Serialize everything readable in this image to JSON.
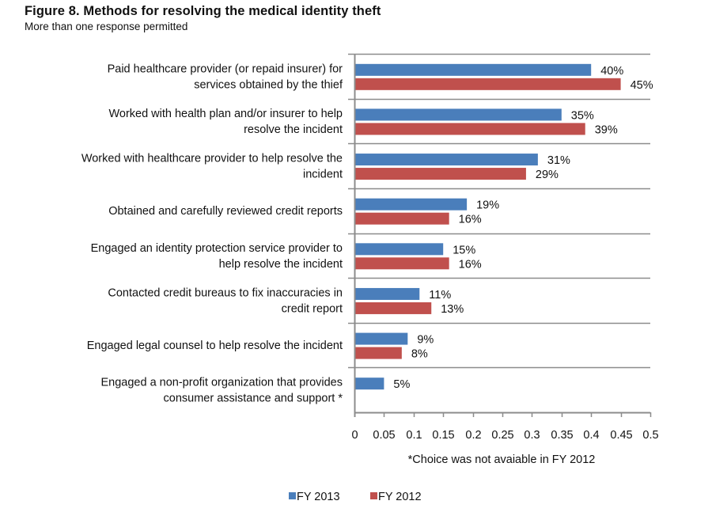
{
  "chart_data": {
    "type": "bar",
    "orientation": "horizontal",
    "title": "Figure 8. Methods for resolving the medical identity theft",
    "subtitle": "More than one response permitted",
    "xlabel": "",
    "ylabel": "",
    "xlim": [
      0,
      0.5
    ],
    "xticks": [
      "0",
      "0.05",
      "0.1",
      "0.15",
      "0.2",
      "0.25",
      "0.3",
      "0.35",
      "0.4",
      "0.45",
      "0.5"
    ],
    "xtick_values": [
      0,
      0.05,
      0.1,
      0.15,
      0.2,
      0.25,
      0.3,
      0.35,
      0.4,
      0.45,
      0.5
    ],
    "grid": false,
    "category_separators": true,
    "legend_position": "bottom",
    "footnote": "*Choice was not avaiable in FY 2012",
    "categories": [
      [
        "Paid healthcare provider (or repaid insurer) for",
        "services obtained by the thief"
      ],
      [
        "Worked with health plan and/or insurer to help",
        "resolve the incident"
      ],
      [
        "Worked with healthcare provider to help resolve the",
        "incident"
      ],
      [
        "Obtained and carefully reviewed credit reports"
      ],
      [
        "Engaged an identity protection service provider to",
        "help resolve the incident"
      ],
      [
        "Contacted credit bureaus to fix inaccuracies in",
        "credit report"
      ],
      [
        "Engaged legal counsel to help resolve the incident"
      ],
      [
        "Engaged a non-profit organization that provides",
        "consumer assistance and support *"
      ]
    ],
    "series": [
      {
        "name": "FY 2013",
        "color": "#4A7EBB",
        "values": [
          0.4,
          0.35,
          0.31,
          0.19,
          0.15,
          0.11,
          0.09,
          0.05
        ],
        "labels": [
          "40%",
          "35%",
          "31%",
          "19%",
          "15%",
          "11%",
          "9%",
          "5%"
        ]
      },
      {
        "name": "FY 2012",
        "color": "#C0504D",
        "values": [
          0.45,
          0.39,
          0.29,
          0.16,
          0.16,
          0.13,
          0.08,
          null
        ],
        "labels": [
          "45%",
          "39%",
          "29%",
          "16%",
          "16%",
          "13%",
          "8%",
          null
        ]
      }
    ]
  },
  "header": {
    "title": "Figure 8. Methods for resolving the medical identity theft",
    "subtitle": "More than one response permitted"
  },
  "footnote": "*Choice was not avaiable in FY 2012",
  "legend": [
    {
      "label": "FY 2013",
      "color": "#4A7EBB"
    },
    {
      "label": "FY 2012",
      "color": "#C0504D"
    }
  ]
}
